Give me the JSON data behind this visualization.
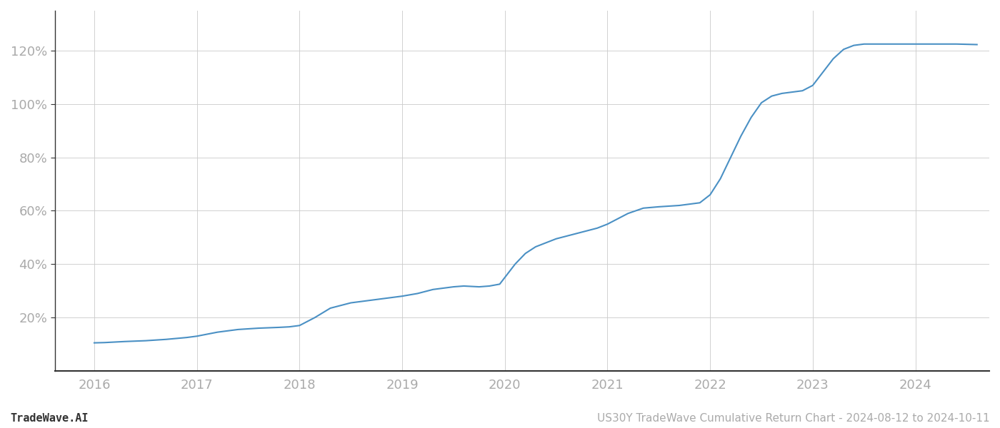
{
  "title": "US30Y TradeWave Cumulative Return Chart - 2024-08-12 to 2024-10-11",
  "watermark": "TradeWave.AI",
  "line_color": "#4a90c4",
  "line_width": 1.5,
  "background_color": "#ffffff",
  "grid_color": "#cccccc",
  "x_years": [
    2016,
    2017,
    2018,
    2019,
    2020,
    2021,
    2022,
    2023,
    2024
  ],
  "data_points": [
    [
      2016.0,
      10.5
    ],
    [
      2016.1,
      10.6
    ],
    [
      2016.3,
      11.0
    ],
    [
      2016.5,
      11.3
    ],
    [
      2016.7,
      11.8
    ],
    [
      2016.9,
      12.5
    ],
    [
      2017.0,
      13.0
    ],
    [
      2017.2,
      14.5
    ],
    [
      2017.4,
      15.5
    ],
    [
      2017.6,
      16.0
    ],
    [
      2017.8,
      16.3
    ],
    [
      2017.9,
      16.5
    ],
    [
      2018.0,
      17.0
    ],
    [
      2018.15,
      20.0
    ],
    [
      2018.3,
      23.5
    ],
    [
      2018.5,
      25.5
    ],
    [
      2018.7,
      26.5
    ],
    [
      2018.9,
      27.5
    ],
    [
      2019.0,
      28.0
    ],
    [
      2019.15,
      29.0
    ],
    [
      2019.3,
      30.5
    ],
    [
      2019.5,
      31.5
    ],
    [
      2019.6,
      31.8
    ],
    [
      2019.75,
      31.5
    ],
    [
      2019.85,
      31.8
    ],
    [
      2019.95,
      32.5
    ],
    [
      2020.0,
      35.0
    ],
    [
      2020.1,
      40.0
    ],
    [
      2020.2,
      44.0
    ],
    [
      2020.3,
      46.5
    ],
    [
      2020.4,
      48.0
    ],
    [
      2020.5,
      49.5
    ],
    [
      2020.6,
      50.5
    ],
    [
      2020.7,
      51.5
    ],
    [
      2020.8,
      52.5
    ],
    [
      2020.9,
      53.5
    ],
    [
      2021.0,
      55.0
    ],
    [
      2021.1,
      57.0
    ],
    [
      2021.2,
      59.0
    ],
    [
      2021.35,
      61.0
    ],
    [
      2021.5,
      61.5
    ],
    [
      2021.7,
      62.0
    ],
    [
      2021.9,
      63.0
    ],
    [
      2022.0,
      66.0
    ],
    [
      2022.1,
      72.0
    ],
    [
      2022.2,
      80.0
    ],
    [
      2022.3,
      88.0
    ],
    [
      2022.4,
      95.0
    ],
    [
      2022.5,
      100.5
    ],
    [
      2022.6,
      103.0
    ],
    [
      2022.7,
      104.0
    ],
    [
      2022.8,
      104.5
    ],
    [
      2022.9,
      105.0
    ],
    [
      2023.0,
      107.0
    ],
    [
      2023.1,
      112.0
    ],
    [
      2023.2,
      117.0
    ],
    [
      2023.3,
      120.5
    ],
    [
      2023.4,
      122.0
    ],
    [
      2023.5,
      122.5
    ],
    [
      2023.6,
      122.5
    ],
    [
      2023.8,
      122.5
    ],
    [
      2024.0,
      122.5
    ],
    [
      2024.2,
      122.5
    ],
    [
      2024.4,
      122.5
    ],
    [
      2024.6,
      122.3
    ]
  ],
  "ylim": [
    0,
    135
  ],
  "yticks": [
    20,
    40,
    60,
    80,
    100,
    120
  ],
  "xlim": [
    2015.62,
    2024.72
  ],
  "title_fontsize": 11,
  "watermark_fontsize": 11,
  "tick_label_color": "#aaaaaa",
  "axis_color": "#333333",
  "spine_color": "#333333"
}
